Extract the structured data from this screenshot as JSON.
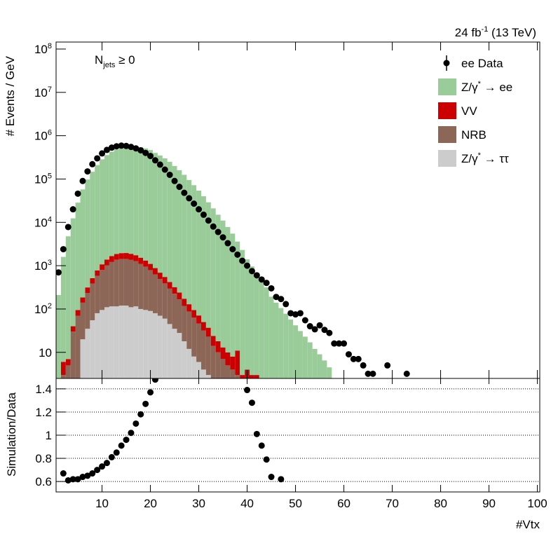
{
  "chart_data": [
    {
      "type": "bar",
      "stacked": true,
      "log_y": true,
      "ylabel": "# Events / GeV",
      "annotation": "N_jets ≥ 0",
      "luminosity": "24 fb^-1 (13 TeV)",
      "xlim": [
        0.5,
        100.5
      ],
      "xticks": [
        10,
        20,
        30,
        40,
        50,
        60,
        70,
        80,
        90,
        100
      ],
      "ylim": [
        2.5,
        145000000
      ],
      "yticks": [
        10,
        {
          "value": 100,
          "label": "10^2"
        },
        {
          "value": 1000,
          "label": "10^3"
        },
        {
          "value": 10000,
          "label": "10^4"
        },
        {
          "value": 100000,
          "label": "10^5"
        },
        {
          "value": 1000000,
          "label": "10^6"
        },
        {
          "value": 10000000,
          "label": "10^7"
        },
        {
          "value": 100000000,
          "label": "10^8"
        }
      ],
      "x": [
        1,
        2,
        3,
        4,
        5,
        6,
        7,
        8,
        9,
        10,
        11,
        12,
        13,
        14,
        15,
        16,
        17,
        18,
        19,
        20,
        21,
        22,
        23,
        24,
        25,
        26,
        27,
        28,
        29,
        30,
        31,
        32,
        33,
        34,
        35,
        36,
        37,
        38,
        39,
        40,
        41,
        42,
        43,
        44,
        45,
        46,
        47,
        48,
        49,
        50,
        51,
        52,
        53,
        54,
        55,
        56,
        57
      ],
      "series": [
        {
          "name": "ee Data",
          "style": "points",
          "color": "#000000",
          "x": [
            1,
            2,
            3,
            4,
            5,
            6,
            7,
            8,
            9,
            10,
            11,
            12,
            13,
            14,
            15,
            16,
            17,
            18,
            19,
            20,
            21,
            22,
            23,
            24,
            25,
            26,
            27,
            28,
            29,
            30,
            31,
            32,
            33,
            34,
            35,
            36,
            37,
            38,
            39,
            40,
            41,
            42,
            43,
            44,
            45,
            46,
            47,
            48,
            49,
            50,
            51,
            52,
            53,
            54,
            55,
            56,
            57,
            58,
            59,
            60,
            61,
            62,
            63,
            64,
            65,
            66,
            67,
            68,
            69,
            70,
            71,
            72,
            73
          ],
          "values": [
            700,
            2400,
            7800,
            20000,
            46000,
            90000,
            150000,
            220000,
            300000,
            390000,
            470000,
            530000,
            570000,
            590000,
            580000,
            550000,
            510000,
            460000,
            400000,
            340000,
            270000,
            215000,
            165000,
            125000,
            90000,
            66000,
            48000,
            36000,
            27000,
            20000,
            15000,
            11000,
            8000,
            6000,
            4500,
            3300,
            2400,
            1800,
            1300,
            1000,
            750,
            600,
            480,
            400,
            300,
            190,
            170,
            130,
            80,
            75,
            80,
            55,
            40,
            34,
            42,
            33,
            28,
            16,
            16,
            16,
            9,
            7,
            7,
            5,
            3.2,
            3.2,
            null,
            null,
            5,
            null,
            null,
            null,
            3.2
          ]
        },
        {
          "name": "Z/γ^* → ττ",
          "color": "#cccccc",
          "values": [
            0,
            0,
            0,
            0,
            0,
            20,
            35,
            55,
            80,
            95,
            110,
            115,
            115,
            120,
            120,
            110,
            115,
            100,
            95,
            90,
            80,
            70,
            60,
            45,
            35,
            28,
            18,
            12,
            8,
            6,
            4,
            3,
            0,
            0,
            0,
            0,
            0,
            0,
            0,
            0,
            0,
            0,
            0,
            0,
            0,
            0,
            0,
            0,
            0,
            0,
            0,
            0,
            0,
            0,
            0,
            0,
            0
          ]
        },
        {
          "name": "NRB",
          "color": "#8c6757",
          "values": [
            0,
            3,
            5,
            30,
            70,
            120,
            200,
            330,
            500,
            700,
            900,
            1100,
            1250,
            1300,
            1300,
            1250,
            1150,
            1000,
            850,
            700,
            550,
            420,
            330,
            250,
            190,
            140,
            100,
            75,
            55,
            40,
            28,
            20,
            14,
            10,
            7,
            5,
            4,
            3,
            0,
            0,
            0,
            0,
            0,
            0,
            0,
            0,
            0,
            0,
            0,
            0,
            0,
            0,
            0,
            0,
            0,
            0,
            0
          ]
        },
        {
          "name": "VV",
          "color": "#cc0000",
          "values": [
            0,
            3,
            2,
            10,
            25,
            45,
            80,
            130,
            200,
            280,
            370,
            450,
            500,
            530,
            540,
            520,
            480,
            430,
            370,
            310,
            250,
            200,
            160,
            125,
            95,
            72,
            55,
            42,
            32,
            25,
            18,
            14,
            10,
            8,
            6,
            5,
            4,
            8,
            3,
            4,
            3,
            3,
            0,
            0,
            0,
            0,
            0,
            0,
            0,
            0,
            0,
            0,
            0,
            0,
            0,
            0,
            0
          ]
        },
        {
          "name": "Z/γ^* → ee",
          "color": "#99cc99",
          "values": [
            210,
            1590,
            4750,
            12360,
            28400,
            57400,
            97200,
            146500,
            209000,
            284000,
            356000,
            428000,
            482000,
            535000,
            555000,
            559000,
            559000,
            541000,
            507000,
            465000,
            399000,
            349000,
            299500,
            249600,
            199700,
            159760,
            124800,
            94870,
            71900,
            53930,
            39950,
            28960,
            20980,
            14980,
            10990,
            7790,
            5490,
            3590,
            2300,
            1396,
            957,
            603,
            437,
            316,
            192,
            140,
            105,
            78,
            57,
            42,
            31,
            23,
            17,
            12,
            9,
            6.5,
            4.5
          ]
        }
      ]
    },
    {
      "type": "scatter",
      "ylabel": "Simulation/Data",
      "xlabel": "#Vtx",
      "grid": true,
      "color": "#000000",
      "xlim": [
        0.5,
        100.5
      ],
      "xticks": [
        10,
        20,
        30,
        40,
        50,
        60,
        70,
        80,
        90,
        100
      ],
      "ylim": [
        0.51,
        1.49
      ],
      "yticks": [
        0.6,
        0.8,
        1,
        1.2,
        1.4
      ],
      "x": [
        2,
        3,
        4,
        5,
        6,
        7,
        8,
        9,
        10,
        11,
        12,
        13,
        14,
        15,
        16,
        17,
        18,
        19,
        20,
        21,
        40,
        41,
        42,
        43,
        44,
        45,
        47
      ],
      "values": [
        0.67,
        0.61,
        0.62,
        0.62,
        0.64,
        0.65,
        0.67,
        0.7,
        0.73,
        0.76,
        0.81,
        0.85,
        0.91,
        0.96,
        1.02,
        1.1,
        1.18,
        1.27,
        1.37,
        1.48,
        1.39,
        1.28,
        1.01,
        0.91,
        0.79,
        0.64,
        0.62
      ]
    }
  ]
}
